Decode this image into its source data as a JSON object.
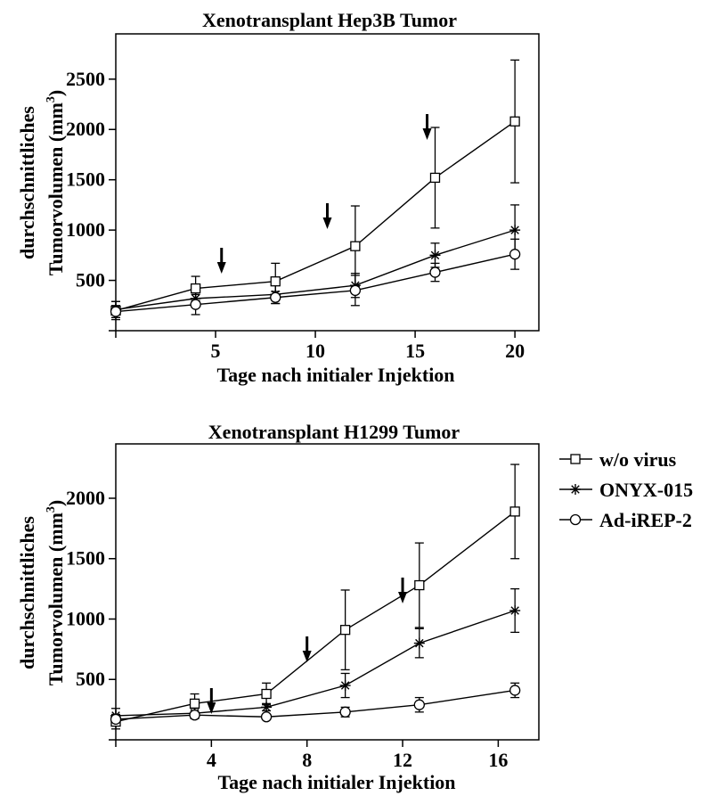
{
  "chart_data": [
    {
      "type": "line",
      "title": "Xenotransplant Hep3B Tumor",
      "xlabel": "Tage nach initialer Injektion",
      "ylabel_line1": "durchschnittliches",
      "ylabel_line2_main": "Tumorvolumen (mm",
      "ylabel_line2_sup": "3",
      "ylabel_line2_end": ")",
      "xlim": [
        0,
        21.2
      ],
      "ylim": [
        0,
        2950
      ],
      "xticks": [
        5,
        10,
        15,
        20
      ],
      "yticks": [
        500,
        1000,
        1500,
        2000,
        2500
      ],
      "arrow_days": [
        5.3,
        10.6,
        15.6
      ],
      "series": [
        {
          "name": "w/o virus",
          "marker": "square",
          "x": [
            0,
            4,
            8,
            12,
            16,
            20
          ],
          "y": [
            200,
            420,
            490,
            840,
            1520,
            2080
          ],
          "err": [
            90,
            120,
            180,
            400,
            500,
            610
          ]
        },
        {
          "name": "ONYX-015",
          "marker": "star",
          "x": [
            0,
            4,
            8,
            12,
            16,
            20
          ],
          "y": [
            210,
            320,
            360,
            450,
            750,
            1000
          ],
          "err": [
            80,
            80,
            90,
            120,
            120,
            250
          ]
        },
        {
          "name": "Ad-iREP-2",
          "marker": "circle",
          "x": [
            0,
            4,
            8,
            12,
            16,
            20
          ],
          "y": [
            190,
            260,
            330,
            400,
            580,
            760
          ],
          "err": [
            60,
            100,
            60,
            150,
            90,
            150
          ]
        }
      ]
    },
    {
      "type": "line",
      "title": "Xenotransplant H1299 Tumor",
      "xlabel": "Tage nach initialer Injektion",
      "ylabel_line1": "durchschnittliches",
      "ylabel_line2_main": "Tumorvolumen (mm",
      "ylabel_line2_sup": "3",
      "ylabel_line2_end": ")",
      "xlim": [
        0,
        17.7
      ],
      "ylim": [
        0,
        2450
      ],
      "xticks": [
        4,
        8,
        12,
        16
      ],
      "yticks": [
        500,
        1000,
        1500,
        2000
      ],
      "arrow_days": [
        4,
        8,
        12
      ],
      "series": [
        {
          "name": "w/o virus",
          "marker": "square",
          "x": [
            0,
            3.3,
            6.3,
            9.6,
            12.7,
            16.7
          ],
          "y": [
            150,
            300,
            380,
            910,
            1280,
            1890
          ],
          "err": [
            60,
            80,
            90,
            330,
            350,
            390
          ]
        },
        {
          "name": "ONYX-015",
          "marker": "star",
          "x": [
            0,
            3.3,
            6.3,
            9.6,
            12.7,
            16.7
          ],
          "y": [
            200,
            220,
            270,
            450,
            800,
            1070
          ],
          "err": [
            60,
            40,
            30,
            100,
            120,
            180
          ]
        },
        {
          "name": "Ad-iREP-2",
          "marker": "circle",
          "x": [
            0,
            3.3,
            6.3,
            9.6,
            12.7,
            16.7
          ],
          "y": [
            170,
            205,
            190,
            230,
            290,
            410
          ],
          "err": [
            40,
            30,
            20,
            40,
            60,
            60
          ]
        }
      ]
    }
  ],
  "legend": {
    "placement": "right of bottom chart",
    "items": [
      "w/o virus",
      "ONYX-015",
      "Ad-iREP-2"
    ]
  }
}
